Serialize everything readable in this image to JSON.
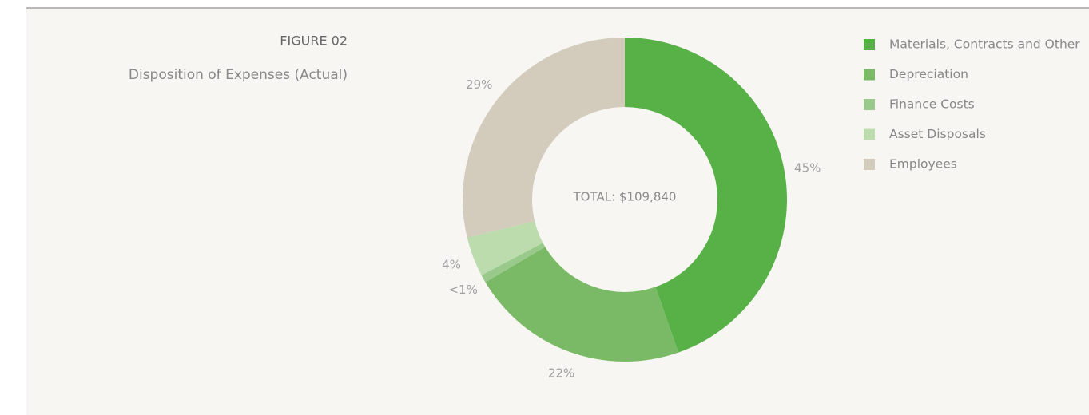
{
  "chart_data": {
    "type": "donut",
    "title": "FIGURE 02",
    "subtitle": "Disposition of Expenses (Actual)",
    "annotation": "TOTAL: $109,840",
    "categories": [
      "Materials, Contracts and Other",
      "Depreciation",
      "Finance Costs",
      "Asset Disposals",
      "Employees"
    ],
    "values": [
      45,
      22,
      0.8,
      4,
      29
    ],
    "value_labels": [
      "45%",
      "22%",
      "<1%",
      "4%",
      "29%"
    ],
    "colors": [
      "#57b147",
      "#7aba66",
      "#99c98b",
      "#bcdcae",
      "#d3ccbd"
    ],
    "legend": "right"
  }
}
